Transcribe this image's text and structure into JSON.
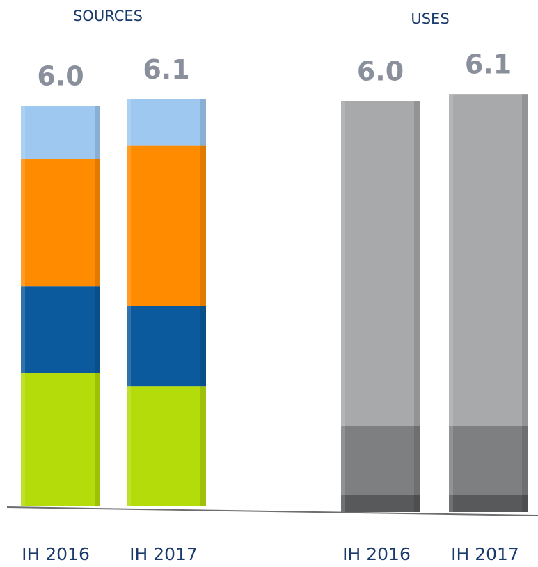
{
  "chart_data": [
    {
      "type": "stacked_bar",
      "title": "SOURCES",
      "categories": [
        "IH 2016",
        "IH 2017"
      ],
      "totals": [
        6.0,
        6.1
      ],
      "total_labels": [
        "6.0",
        "6.1"
      ],
      "series": [
        {
          "color": "#b4dc0a",
          "values": [
            2.0,
            1.8
          ]
        },
        {
          "color": "#0b5a9e",
          "values": [
            1.3,
            1.2
          ]
        },
        {
          "color": "#ff8c00",
          "values": [
            1.9,
            2.4
          ]
        },
        {
          "color": "#9ec8f0",
          "values": [
            0.8,
            0.7
          ]
        }
      ]
    },
    {
      "type": "stacked_bar",
      "title": "USES",
      "categories": [
        "IH 2016",
        "IH 2017"
      ],
      "totals": [
        6.0,
        6.1
      ],
      "total_labels": [
        "6.0",
        "6.1"
      ],
      "series": [
        {
          "color": "#58595b",
          "values": [
            0.25,
            0.25
          ]
        },
        {
          "color": "#7e7f81",
          "values": [
            1.0,
            1.0
          ]
        },
        {
          "color": "#a8a9ab",
          "values": [
            4.75,
            4.85
          ]
        }
      ]
    }
  ]
}
